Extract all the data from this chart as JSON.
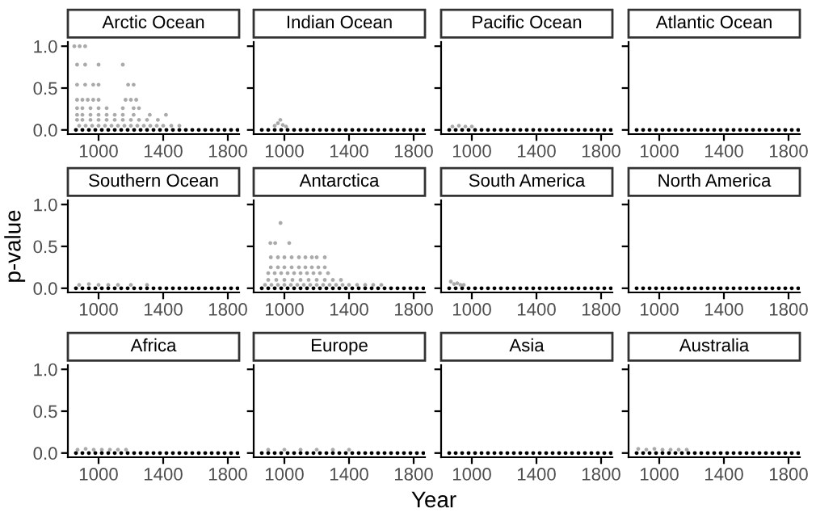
{
  "chart_data": [
    {
      "type": "scatter",
      "title": "Arctic Ocean",
      "xlim": [
        810,
        1870
      ],
      "ylim": [
        -0.05,
        1.05
      ],
      "xticks": [
        1000,
        1400,
        1800
      ],
      "yticks": [
        {
          "value": 0,
          "label": "0.0"
        },
        {
          "value": 0.5,
          "label": "0.5"
        },
        {
          "value": 1,
          "label": "1.0"
        }
      ],
      "marker": "circle",
      "series": [
        {
          "color": "#aaaaaa",
          "x": [
            850,
            883,
            917,
            867,
            917,
            1000,
            1150,
            867,
            917,
            967,
            1000,
            1183,
            1217,
            867,
            900,
            933,
            967,
            1000,
            1167,
            1200,
            1233,
            867,
            900,
            950,
            1000,
            1050,
            1150,
            1217,
            1250,
            867,
            900,
            950,
            1000,
            1050,
            1100,
            1150,
            1217,
            1317,
            1417,
            867,
            900,
            950,
            1000,
            1050,
            1100,
            1150,
            1200,
            1250,
            1300,
            1367,
            880,
            920,
            960,
            1000,
            1040,
            1080,
            1120,
            1160,
            1200,
            1240,
            1280,
            1320,
            1360,
            1400,
            1450,
            1500
          ],
          "values": [
            1.0,
            1.0,
            1.0,
            0.78,
            0.78,
            0.78,
            0.78,
            0.54,
            0.54,
            0.54,
            0.54,
            0.54,
            0.54,
            0.36,
            0.36,
            0.36,
            0.36,
            0.36,
            0.36,
            0.36,
            0.36,
            0.26,
            0.26,
            0.26,
            0.26,
            0.26,
            0.26,
            0.26,
            0.26,
            0.18,
            0.18,
            0.18,
            0.18,
            0.18,
            0.18,
            0.18,
            0.18,
            0.18,
            0.18,
            0.12,
            0.12,
            0.12,
            0.12,
            0.12,
            0.12,
            0.12,
            0.12,
            0.12,
            0.12,
            0.12,
            0.05,
            0.05,
            0.05,
            0.05,
            0.05,
            0.05,
            0.05,
            0.05,
            0.05,
            0.05,
            0.05,
            0.05,
            0.05,
            0.05,
            0.05,
            0.05
          ]
        },
        {
          "color": "#000000",
          "x": [
            860,
            900,
            940,
            980,
            1020,
            1060,
            1100,
            1140,
            1180,
            1220,
            1260,
            1300,
            1340,
            1380,
            1420,
            1460,
            1500,
            1540,
            1580,
            1620,
            1660,
            1700,
            1740,
            1780,
            1820,
            1860
          ],
          "values": [
            0,
            0,
            0,
            0,
            0,
            0,
            0,
            0,
            0,
            0,
            0,
            0,
            0,
            0,
            0,
            0,
            0,
            0,
            0,
            0,
            0,
            0,
            0,
            0,
            0,
            0
          ]
        }
      ]
    },
    {
      "type": "scatter",
      "title": "Indian Ocean",
      "xlim": [
        810,
        1870
      ],
      "ylim": [
        -0.05,
        1.05
      ],
      "xticks": [
        1000,
        1400,
        1800
      ],
      "yticks": [
        {
          "value": 0,
          "label": null
        },
        {
          "value": 0.5,
          "label": null
        },
        {
          "value": 1,
          "label": null
        }
      ],
      "tick_labels": "x",
      "marker": "circle",
      "series": [
        {
          "color": "#aaaaaa",
          "x": [
            940,
            960,
            975,
            990,
            1010
          ],
          "values": [
            0.05,
            0.08,
            0.12,
            0.06,
            0.04
          ]
        },
        {
          "color": "#000000",
          "x": [
            860,
            900,
            940,
            980,
            1020,
            1060,
            1100,
            1140,
            1180,
            1220,
            1260,
            1300,
            1340,
            1380,
            1420,
            1460,
            1500,
            1540,
            1580,
            1620,
            1660,
            1700,
            1740,
            1780,
            1820,
            1860
          ],
          "values": [
            0,
            0,
            0,
            0,
            0,
            0,
            0,
            0,
            0,
            0,
            0,
            0,
            0,
            0,
            0,
            0,
            0,
            0,
            0,
            0,
            0,
            0,
            0,
            0,
            0,
            0
          ]
        }
      ]
    },
    {
      "type": "scatter",
      "title": "Pacific Ocean",
      "xlim": [
        810,
        1870
      ],
      "ylim": [
        -0.05,
        1.05
      ],
      "xticks": [
        1000,
        1400,
        1800
      ],
      "yticks": [
        {
          "value": 0,
          "label": null
        },
        {
          "value": 0.5,
          "label": null
        },
        {
          "value": 1,
          "label": null
        }
      ],
      "tick_labels": "x",
      "marker": "circle",
      "series": [
        {
          "color": "#aaaaaa",
          "x": [
            880,
            920,
            960,
            1000
          ],
          "values": [
            0.04,
            0.05,
            0.04,
            0.04
          ]
        },
        {
          "color": "#000000",
          "x": [
            860,
            900,
            940,
            980,
            1020,
            1060,
            1100,
            1140,
            1180,
            1220,
            1260,
            1300,
            1340,
            1380,
            1420,
            1460,
            1500,
            1540,
            1580,
            1620,
            1660,
            1700,
            1740,
            1780,
            1820,
            1860
          ],
          "values": [
            0,
            0,
            0,
            0,
            0,
            0,
            0,
            0,
            0,
            0,
            0,
            0,
            0,
            0,
            0,
            0,
            0,
            0,
            0,
            0,
            0,
            0,
            0,
            0,
            0,
            0
          ]
        }
      ]
    },
    {
      "type": "scatter",
      "title": "Atlantic Ocean",
      "xlim": [
        810,
        1870
      ],
      "ylim": [
        -0.05,
        1.05
      ],
      "xticks": [
        1000,
        1400,
        1800
      ],
      "yticks": [
        {
          "value": 0,
          "label": null
        },
        {
          "value": 0.5,
          "label": null
        },
        {
          "value": 1,
          "label": null
        }
      ],
      "tick_labels": "x",
      "marker": "circle",
      "series": [
        {
          "color": "#000000",
          "x": [
            860,
            900,
            940,
            980,
            1020,
            1060,
            1100,
            1140,
            1180,
            1220,
            1260,
            1300,
            1340,
            1380,
            1420,
            1460,
            1500,
            1540,
            1580,
            1620,
            1660,
            1700,
            1740,
            1780,
            1820,
            1860
          ],
          "values": [
            0,
            0,
            0,
            0,
            0,
            0,
            0,
            0,
            0,
            0,
            0,
            0,
            0,
            0,
            0,
            0,
            0,
            0,
            0,
            0,
            0,
            0,
            0,
            0,
            0,
            0
          ]
        }
      ]
    },
    {
      "type": "scatter",
      "title": "Southern Ocean",
      "ylabel": "p-value",
      "xlim": [
        810,
        1870
      ],
      "ylim": [
        -0.05,
        1.05
      ],
      "xticks": [
        1000,
        1400,
        1800
      ],
      "yticks": [
        {
          "value": 0,
          "label": "0.0"
        },
        {
          "value": 0.5,
          "label": "0.5"
        },
        {
          "value": 1,
          "label": "1.0"
        }
      ],
      "marker": "circle",
      "series": [
        {
          "color": "#aaaaaa",
          "x": [
            880,
            940,
            1000,
            1060,
            1120,
            1200,
            1300
          ],
          "values": [
            0.04,
            0.05,
            0.04,
            0.04,
            0.04,
            0.04,
            0.04
          ]
        },
        {
          "color": "#000000",
          "x": [
            860,
            900,
            940,
            980,
            1020,
            1060,
            1100,
            1140,
            1180,
            1220,
            1260,
            1300,
            1340,
            1380,
            1420,
            1460,
            1500,
            1540,
            1580,
            1620,
            1660,
            1700,
            1740,
            1780,
            1820,
            1860
          ],
          "values": [
            0,
            0,
            0,
            0,
            0,
            0,
            0,
            0,
            0,
            0,
            0,
            0,
            0,
            0,
            0,
            0,
            0,
            0,
            0,
            0,
            0,
            0,
            0,
            0,
            0,
            0
          ]
        }
      ]
    },
    {
      "type": "scatter",
      "title": "Antarctica",
      "xlim": [
        810,
        1870
      ],
      "ylim": [
        -0.05,
        1.05
      ],
      "xticks": [
        1000,
        1400,
        1800
      ],
      "yticks": [
        {
          "value": 0,
          "label": null
        },
        {
          "value": 0.5,
          "label": null
        },
        {
          "value": 1,
          "label": null
        }
      ],
      "tick_labels": "x",
      "marker": "circle",
      "series": [
        {
          "color": "#aaaaaa",
          "x": [
            976,
            913,
            943,
            1030,
            916,
            960,
            1000,
            1045,
            1090,
            1130,
            1170,
            1200,
            1250,
            916,
            960,
            1000,
            1045,
            1090,
            1130,
            1170,
            1210,
            1250,
            900,
            940,
            980,
            1020,
            1060,
            1100,
            1140,
            1180,
            1220,
            1270,
            900,
            950,
            1000,
            1050,
            1100,
            1150,
            1200,
            1250,
            1300,
            1350,
            880,
            920,
            960,
            1000,
            1040,
            1080,
            1120,
            1160,
            1200,
            1240,
            1280,
            1320,
            1360,
            1400,
            1450,
            1500,
            1550,
            1600
          ],
          "values": [
            0.78,
            0.54,
            0.54,
            0.54,
            0.37,
            0.37,
            0.37,
            0.37,
            0.37,
            0.37,
            0.37,
            0.37,
            0.37,
            0.25,
            0.25,
            0.25,
            0.25,
            0.25,
            0.25,
            0.25,
            0.25,
            0.25,
            0.18,
            0.18,
            0.18,
            0.18,
            0.18,
            0.18,
            0.18,
            0.18,
            0.18,
            0.18,
            0.1,
            0.1,
            0.1,
            0.1,
            0.1,
            0.1,
            0.1,
            0.1,
            0.1,
            0.1,
            0.04,
            0.04,
            0.04,
            0.04,
            0.04,
            0.04,
            0.04,
            0.04,
            0.04,
            0.04,
            0.04,
            0.04,
            0.04,
            0.04,
            0.04,
            0.04,
            0.04,
            0.04
          ]
        },
        {
          "color": "#000000",
          "x": [
            860,
            900,
            940,
            980,
            1020,
            1060,
            1100,
            1140,
            1180,
            1220,
            1260,
            1300,
            1340,
            1380,
            1420,
            1460,
            1500,
            1540,
            1580,
            1620,
            1660,
            1700,
            1740,
            1780,
            1820,
            1860
          ],
          "values": [
            0,
            0,
            0,
            0,
            0,
            0,
            0,
            0,
            0,
            0,
            0,
            0,
            0,
            0,
            0,
            0,
            0,
            0,
            0,
            0,
            0,
            0,
            0,
            0,
            0,
            0
          ]
        }
      ]
    },
    {
      "type": "scatter",
      "title": "South America",
      "xlim": [
        810,
        1870
      ],
      "ylim": [
        -0.05,
        1.05
      ],
      "xticks": [
        1000,
        1400,
        1800
      ],
      "yticks": [
        {
          "value": 0,
          "label": null
        },
        {
          "value": 0.5,
          "label": null
        },
        {
          "value": 1,
          "label": null
        }
      ],
      "tick_labels": "x",
      "marker": "circle",
      "series": [
        {
          "color": "#aaaaaa",
          "x": [
            870,
            890,
            910,
            930,
            950
          ],
          "values": [
            0.08,
            0.05,
            0.06,
            0.04,
            0.04
          ]
        },
        {
          "color": "#000000",
          "x": [
            860,
            900,
            940,
            980,
            1020,
            1060,
            1100,
            1140,
            1180,
            1220,
            1260,
            1300,
            1340,
            1380,
            1420,
            1460,
            1500,
            1540,
            1580,
            1620,
            1660,
            1700,
            1740,
            1780,
            1820,
            1860
          ],
          "values": [
            0,
            0,
            0,
            0,
            0,
            0,
            0,
            0,
            0,
            0,
            0,
            0,
            0,
            0,
            0,
            0,
            0,
            0,
            0,
            0,
            0,
            0,
            0,
            0,
            0,
            0
          ]
        }
      ]
    },
    {
      "type": "scatter",
      "title": "North America",
      "xlim": [
        810,
        1870
      ],
      "ylim": [
        -0.05,
        1.05
      ],
      "xticks": [
        1000,
        1400,
        1800
      ],
      "yticks": [
        {
          "value": 0,
          "label": null
        },
        {
          "value": 0.5,
          "label": null
        },
        {
          "value": 1,
          "label": null
        }
      ],
      "tick_labels": "x",
      "marker": "circle",
      "series": [
        {
          "color": "#000000",
          "x": [
            860,
            900,
            940,
            980,
            1020,
            1060,
            1100,
            1140,
            1180,
            1220,
            1260,
            1300,
            1340,
            1380,
            1420,
            1460,
            1500,
            1540,
            1580,
            1620,
            1660,
            1700,
            1740,
            1780,
            1820,
            1860
          ],
          "values": [
            0,
            0,
            0,
            0,
            0,
            0,
            0,
            0,
            0,
            0,
            0,
            0,
            0,
            0,
            0,
            0,
            0,
            0,
            0,
            0,
            0,
            0,
            0,
            0,
            0,
            0
          ]
        }
      ]
    },
    {
      "type": "scatter",
      "title": "Africa",
      "xlim": [
        810,
        1870
      ],
      "ylim": [
        -0.05,
        1.05
      ],
      "xticks": [
        1000,
        1400,
        1800
      ],
      "yticks": [
        {
          "value": 0,
          "label": "0.0"
        },
        {
          "value": 0.5,
          "label": "0.5"
        },
        {
          "value": 1,
          "label": "1.0"
        }
      ],
      "marker": "circle",
      "series": [
        {
          "color": "#aaaaaa",
          "x": [
            870,
            920,
            970,
            1020,
            1070,
            1120,
            1170
          ],
          "values": [
            0.04,
            0.05,
            0.04,
            0.04,
            0.04,
            0.04,
            0.04
          ]
        },
        {
          "color": "#000000",
          "x": [
            860,
            900,
            940,
            980,
            1020,
            1060,
            1100,
            1140,
            1180,
            1220,
            1260,
            1300,
            1340,
            1380,
            1420,
            1460,
            1500,
            1540,
            1580,
            1620,
            1660,
            1700,
            1740,
            1780,
            1820,
            1860
          ],
          "values": [
            0,
            0,
            0,
            0,
            0,
            0,
            0,
            0,
            0,
            0,
            0,
            0,
            0,
            0,
            0,
            0,
            0,
            0,
            0,
            0,
            0,
            0,
            0,
            0,
            0,
            0
          ]
        }
      ]
    },
    {
      "type": "scatter",
      "title": "Europe",
      "annotations": [
        "Year"
      ],
      "xlim": [
        810,
        1870
      ],
      "ylim": [
        -0.05,
        1.05
      ],
      "xticks": [
        1000,
        1400,
        1800
      ],
      "yticks": [
        {
          "value": 0,
          "label": null
        },
        {
          "value": 0.5,
          "label": null
        },
        {
          "value": 1,
          "label": null
        }
      ],
      "tick_labels": "x",
      "marker": "circle",
      "series": [
        {
          "color": "#aaaaaa",
          "x": [
            900,
            1000,
            1100,
            1200,
            1300,
            1400
          ],
          "values": [
            0.04,
            0.04,
            0.04,
            0.04,
            0.04,
            0.04
          ]
        },
        {
          "color": "#000000",
          "x": [
            860,
            900,
            940,
            980,
            1020,
            1060,
            1100,
            1140,
            1180,
            1220,
            1260,
            1300,
            1340,
            1380,
            1420,
            1460,
            1500,
            1540,
            1580,
            1620,
            1660,
            1700,
            1740,
            1780,
            1820,
            1860
          ],
          "values": [
            0,
            0,
            0,
            0,
            0,
            0,
            0,
            0,
            0,
            0,
            0,
            0,
            0,
            0,
            0,
            0,
            0,
            0,
            0,
            0,
            0,
            0,
            0,
            0,
            0,
            0
          ]
        }
      ]
    },
    {
      "type": "scatter",
      "title": "Asia",
      "xlim": [
        810,
        1870
      ],
      "ylim": [
        -0.05,
        1.05
      ],
      "xticks": [
        1000,
        1400,
        1800
      ],
      "yticks": [
        {
          "value": 0,
          "label": null
        },
        {
          "value": 0.5,
          "label": null
        },
        {
          "value": 1,
          "label": null
        }
      ],
      "tick_labels": "x",
      "marker": "circle",
      "series": [
        {
          "color": "#000000",
          "x": [
            860,
            900,
            940,
            980,
            1020,
            1060,
            1100,
            1140,
            1180,
            1220,
            1260,
            1300,
            1340,
            1380,
            1420,
            1460,
            1500,
            1540,
            1580,
            1620,
            1660,
            1700,
            1740,
            1780,
            1820,
            1860
          ],
          "values": [
            0,
            0,
            0,
            0,
            0,
            0,
            0,
            0,
            0,
            0,
            0,
            0,
            0,
            0,
            0,
            0,
            0,
            0,
            0,
            0,
            0,
            0,
            0,
            0,
            0,
            0
          ]
        }
      ]
    },
    {
      "type": "scatter",
      "title": "Australia",
      "xlim": [
        810,
        1870
      ],
      "ylim": [
        -0.05,
        1.05
      ],
      "xticks": [
        1000,
        1400,
        1800
      ],
      "yticks": [
        {
          "value": 0,
          "label": null
        },
        {
          "value": 0.5,
          "label": null
        },
        {
          "value": 1,
          "label": null
        }
      ],
      "tick_labels": "x",
      "marker": "circle",
      "series": [
        {
          "color": "#aaaaaa",
          "x": [
            870,
            920,
            970,
            1020,
            1070,
            1120,
            1170
          ],
          "values": [
            0.05,
            0.04,
            0.05,
            0.04,
            0.04,
            0.04,
            0.04
          ]
        },
        {
          "color": "#000000",
          "x": [
            860,
            900,
            940,
            980,
            1020,
            1060,
            1100,
            1140,
            1180,
            1220,
            1260,
            1300,
            1340,
            1380,
            1420,
            1460,
            1500,
            1540,
            1580,
            1620,
            1660,
            1700,
            1740,
            1780,
            1820,
            1860
          ],
          "values": [
            0,
            0,
            0,
            0,
            0,
            0,
            0,
            0,
            0,
            0,
            0,
            0,
            0,
            0,
            0,
            0,
            0,
            0,
            0,
            0,
            0,
            0,
            0,
            0,
            0,
            0
          ]
        }
      ]
    }
  ]
}
